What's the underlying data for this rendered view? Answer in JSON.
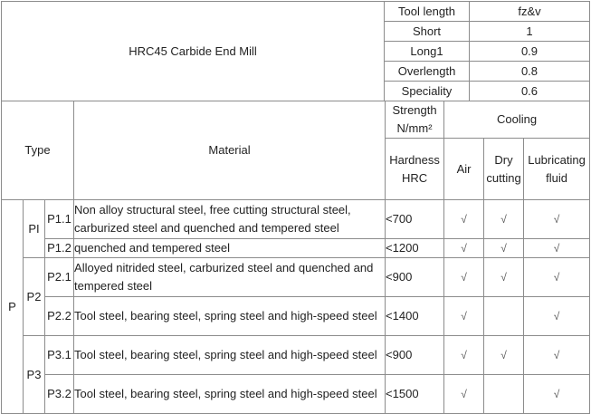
{
  "title": "HRC45 Carbide End Mill",
  "tool_table": {
    "headers": [
      "Tool length",
      "fz&v"
    ],
    "rows": [
      {
        "length": "Short",
        "factor": "1"
      },
      {
        "length": "Long1",
        "factor": "0.9"
      },
      {
        "length": "Overlength",
        "factor": "0.8"
      },
      {
        "length": "Speciality",
        "factor": "0.6"
      }
    ]
  },
  "header": {
    "type": "Type",
    "material": "Material",
    "strength": "Strength N/mm²",
    "hardness": "Hardness HRC",
    "cooling": "Cooling",
    "air": "Air",
    "dry": "Dry cutting",
    "fluid": "Lubricating fluid"
  },
  "group": "P",
  "subgroups": [
    "PI",
    "P2",
    "P3"
  ],
  "check_mark": "√",
  "rows": [
    {
      "code": "P1.1",
      "material": "Non alloy structural steel, free cutting structural steel, carburized steel and quenched and tempered steel",
      "strength": "<700",
      "air": "√",
      "dry": "√",
      "fluid": "√"
    },
    {
      "code": "P1.2",
      "material": "quenched and tempered steel",
      "strength": "<1200",
      "air": "√",
      "dry": "√",
      "fluid": "√"
    },
    {
      "code": "P2.1",
      "material": "Alloyed nitrided steel, carburized steel and quenched and tempered steel",
      "strength": "<900",
      "air": "√",
      "dry": "√",
      "fluid": "√"
    },
    {
      "code": "P2.2",
      "material": "Tool steel, bearing steel, spring steel and high-speed steel",
      "strength": "<1400",
      "air": "√",
      "dry": "",
      "fluid": "√"
    },
    {
      "code": "P3.1",
      "material": "Tool steel, bearing steel, spring steel and high-speed steel",
      "strength": "<900",
      "air": "√",
      "dry": "√",
      "fluid": "√"
    },
    {
      "code": "P3.2",
      "material": "Tool steel, bearing steel, spring steel and high-speed steel",
      "strength": "<1500",
      "air": "√",
      "dry": "",
      "fluid": "√"
    }
  ]
}
